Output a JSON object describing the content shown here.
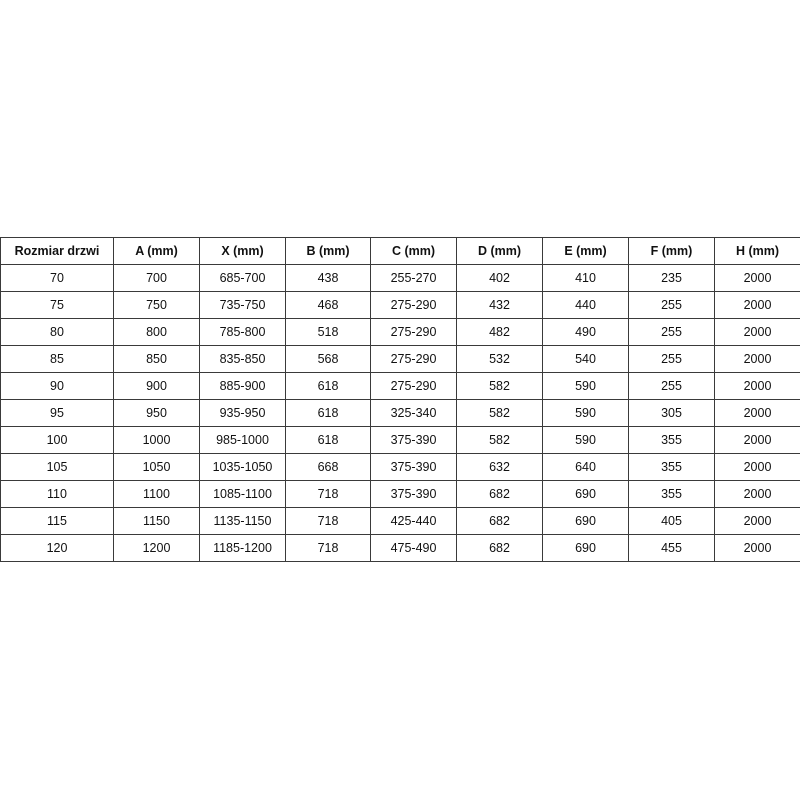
{
  "table": {
    "headers": [
      "Rozmiar drzwi",
      "A (mm)",
      "X (mm)",
      "B (mm)",
      "C (mm)",
      "D (mm)",
      "E (mm)",
      "F (mm)",
      "H (mm)"
    ],
    "rows": [
      [
        "70",
        "700",
        "685-700",
        "438",
        "255-270",
        "402",
        "410",
        "235",
        "2000"
      ],
      [
        "75",
        "750",
        "735-750",
        "468",
        "275-290",
        "432",
        "440",
        "255",
        "2000"
      ],
      [
        "80",
        "800",
        "785-800",
        "518",
        "275-290",
        "482",
        "490",
        "255",
        "2000"
      ],
      [
        "85",
        "850",
        "835-850",
        "568",
        "275-290",
        "532",
        "540",
        "255",
        "2000"
      ],
      [
        "90",
        "900",
        "885-900",
        "618",
        "275-290",
        "582",
        "590",
        "255",
        "2000"
      ],
      [
        "95",
        "950",
        "935-950",
        "618",
        "325-340",
        "582",
        "590",
        "305",
        "2000"
      ],
      [
        "100",
        "1000",
        "985-1000",
        "618",
        "375-390",
        "582",
        "590",
        "355",
        "2000"
      ],
      [
        "105",
        "1050",
        "1035-1050",
        "668",
        "375-390",
        "632",
        "640",
        "355",
        "2000"
      ],
      [
        "110",
        "1100",
        "1085-1100",
        "718",
        "375-390",
        "682",
        "690",
        "355",
        "2000"
      ],
      [
        "115",
        "1150",
        "1135-1150",
        "718",
        "425-440",
        "682",
        "690",
        "405",
        "2000"
      ],
      [
        "120",
        "1200",
        "1185-1200",
        "718",
        "475-490",
        "682",
        "690",
        "455",
        "2000"
      ]
    ]
  }
}
